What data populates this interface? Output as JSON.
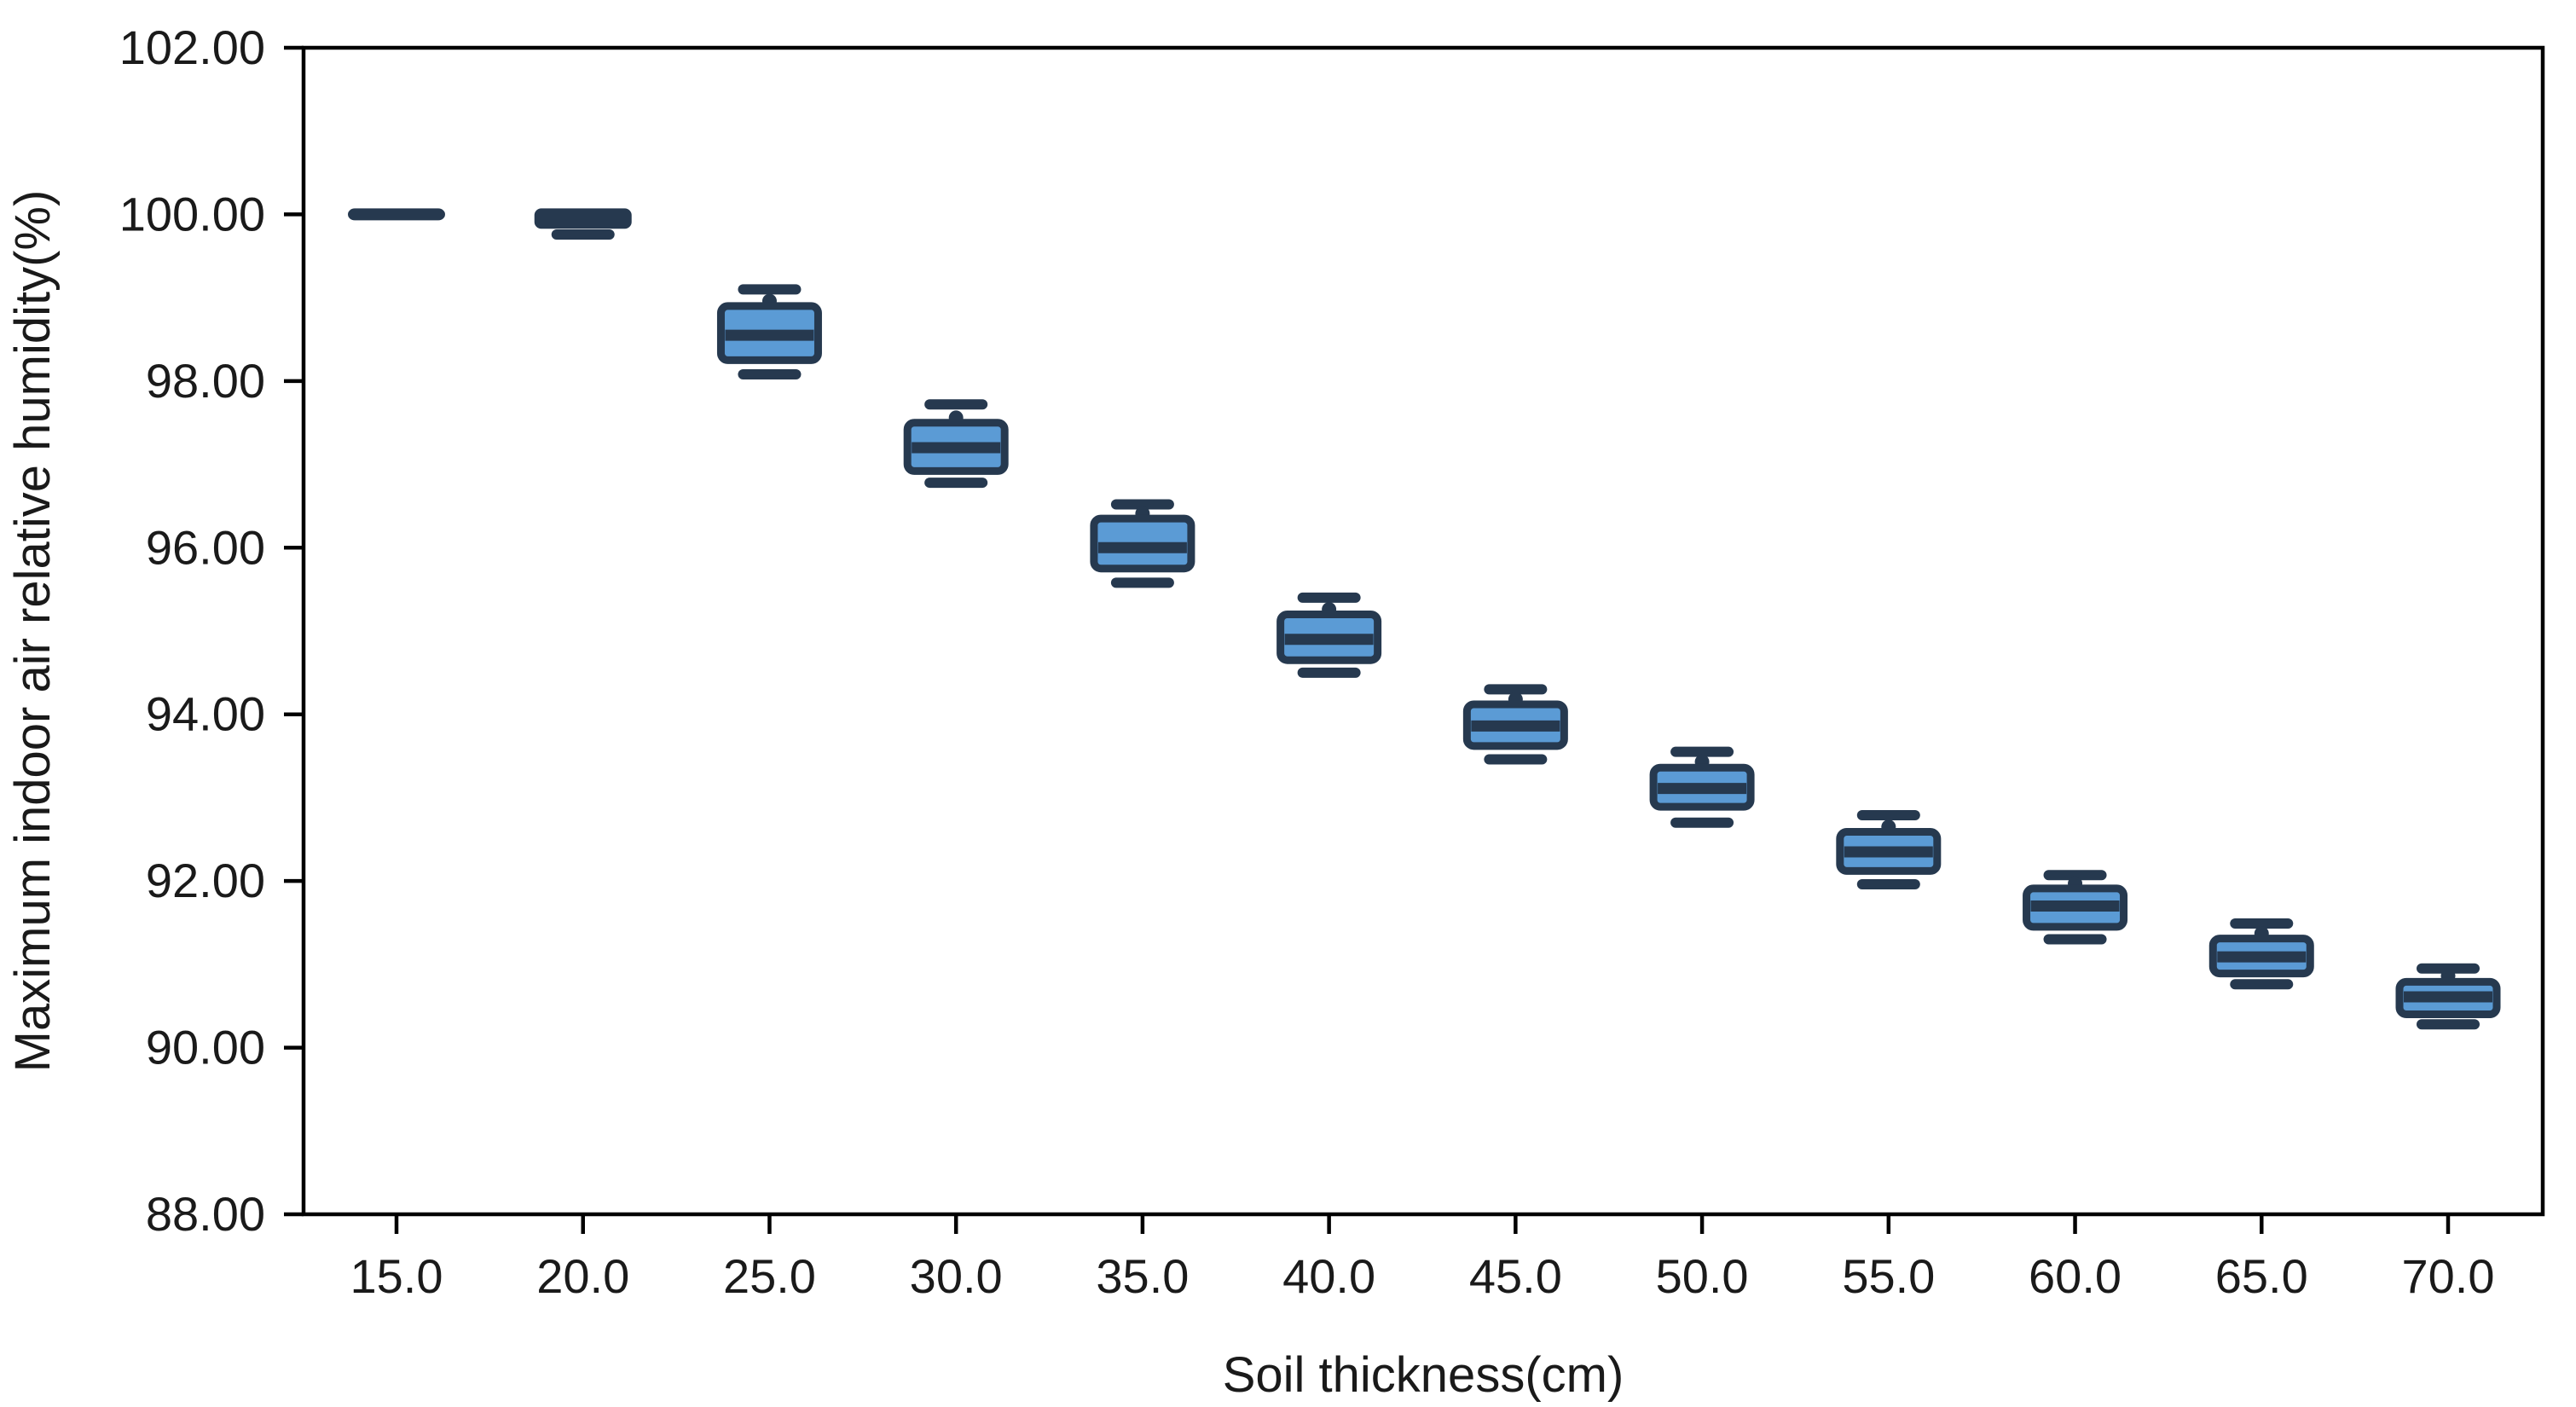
{
  "chart_data": {
    "type": "box",
    "title": "",
    "xlabel": "Soil thickness(cm)",
    "ylabel": "Maximum indoor air relative humidity(%)",
    "ylim": [
      88,
      102
    ],
    "grid": false,
    "legend": "none",
    "y_tick_values": [
      102,
      100,
      98,
      96,
      94,
      92,
      90,
      88
    ],
    "y_tick_labels": [
      "102.00",
      "100.00",
      "98.00",
      "96.00",
      "94.00",
      "92.00",
      "90.00",
      "88.00"
    ],
    "x_tick_labels": [
      "15.0",
      "20.0",
      "25.0",
      "30.0",
      "35.0",
      "40.0",
      "45.0",
      "50.0",
      "55.0",
      "60.0",
      "65.0",
      "70.0"
    ],
    "categories": [
      15.0,
      20.0,
      25.0,
      30.0,
      35.0,
      40.0,
      45.0,
      50.0,
      55.0,
      60.0,
      65.0,
      70.0
    ],
    "boxes": [
      {
        "x": 15.0,
        "whisker_low": 100.0,
        "q1": 100.0,
        "median": 100.0,
        "q3": 100.0,
        "whisker_high": 100.0,
        "dot": null,
        "collapsed": true
      },
      {
        "x": 20.0,
        "whisker_low": 99.8,
        "q1": 99.9,
        "median": 99.95,
        "q3": 100.0,
        "whisker_high": 100.0,
        "dot": null,
        "collapsed": true
      },
      {
        "x": 25.0,
        "whisker_low": 98.08,
        "q1": 98.25,
        "median": 98.55,
        "q3": 98.9,
        "whisker_high": 99.1,
        "dot": 98.96,
        "collapsed": false
      },
      {
        "x": 30.0,
        "whisker_low": 96.78,
        "q1": 96.92,
        "median": 97.2,
        "q3": 97.5,
        "whisker_high": 97.72,
        "dot": 97.56,
        "collapsed": false
      },
      {
        "x": 35.0,
        "whisker_low": 95.58,
        "q1": 95.75,
        "median": 96.0,
        "q3": 96.35,
        "whisker_high": 96.52,
        "dot": 96.41,
        "collapsed": false
      },
      {
        "x": 40.0,
        "whisker_low": 94.5,
        "q1": 94.65,
        "median": 94.9,
        "q3": 95.2,
        "whisker_high": 95.4,
        "dot": 95.26,
        "collapsed": false
      },
      {
        "x": 45.0,
        "whisker_low": 93.46,
        "q1": 93.62,
        "median": 93.86,
        "q3": 94.12,
        "whisker_high": 94.3,
        "dot": 94.18,
        "collapsed": false
      },
      {
        "x": 50.0,
        "whisker_low": 92.7,
        "q1": 92.89,
        "median": 93.11,
        "q3": 93.36,
        "whisker_high": 93.55,
        "dot": 93.43,
        "collapsed": false
      },
      {
        "x": 55.0,
        "whisker_low": 91.96,
        "q1": 92.12,
        "median": 92.35,
        "q3": 92.59,
        "whisker_high": 92.79,
        "dot": 92.65,
        "collapsed": false
      },
      {
        "x": 60.0,
        "whisker_low": 91.3,
        "q1": 91.45,
        "median": 91.7,
        "q3": 91.91,
        "whisker_high": 92.07,
        "dot": 91.97,
        "collapsed": false
      },
      {
        "x": 65.0,
        "whisker_low": 90.76,
        "q1": 90.89,
        "median": 91.09,
        "q3": 91.31,
        "whisker_high": 91.49,
        "dot": 91.37,
        "collapsed": false
      },
      {
        "x": 70.0,
        "whisker_low": 90.28,
        "q1": 90.4,
        "median": 90.61,
        "q3": 90.79,
        "whisker_high": 90.95,
        "dot": 90.86,
        "collapsed": false
      }
    ],
    "colors": {
      "box_fill": "#5B9BD5",
      "box_border": "#26394F",
      "axis": "#000000",
      "text": "#1a1a1a",
      "background": "#ffffff"
    }
  }
}
